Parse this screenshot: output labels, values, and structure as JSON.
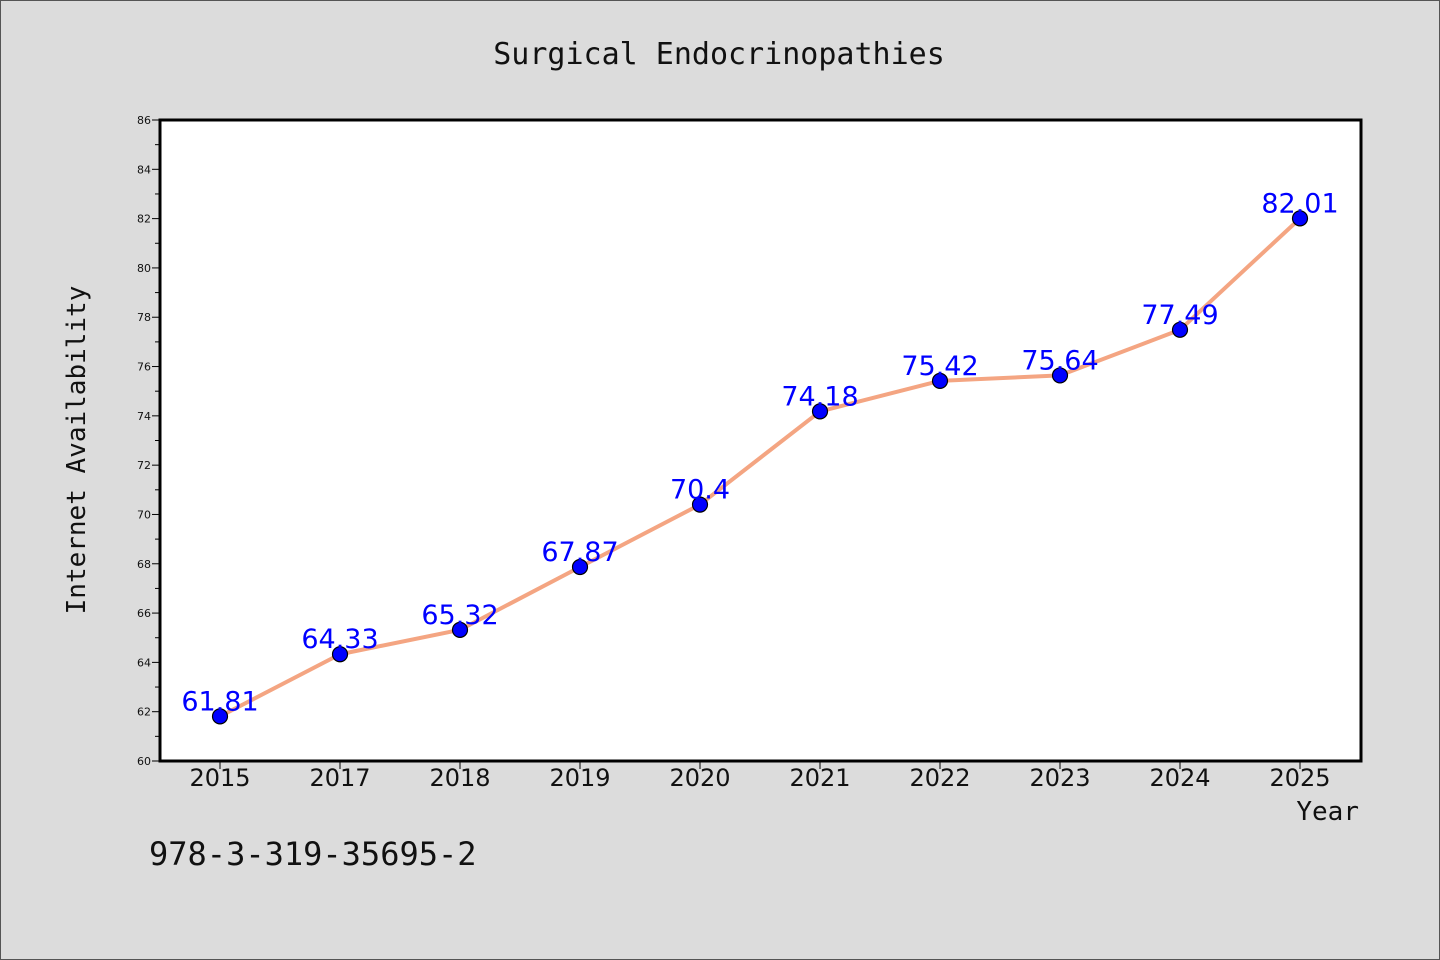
{
  "chart_data": {
    "type": "line",
    "title": "Surgical Endocrinopathies",
    "xlabel": "Year",
    "ylabel": "Internet Availability",
    "categories": [
      "2015",
      "2017",
      "2018",
      "2019",
      "2020",
      "2021",
      "2022",
      "2023",
      "2024",
      "2025"
    ],
    "values": [
      61.81,
      64.33,
      65.32,
      67.87,
      70.4,
      74.18,
      75.42,
      75.64,
      77.49,
      82.01
    ],
    "data_labels": [
      "61.81",
      "64.33",
      "65.32",
      "67.87",
      "70.4",
      "74.18",
      "75.42",
      "75.64",
      "77.49",
      "82.01"
    ],
    "ylim": [
      60,
      86
    ],
    "y_ticks": [
      "60",
      "62",
      "64",
      "66",
      "68",
      "70",
      "72",
      "74",
      "76",
      "78",
      "80",
      "82",
      "84",
      "86"
    ],
    "grid": false,
    "legend": "none",
    "line_color": "#f4a582",
    "marker_color": "#0000ff",
    "label_color": "#0000ff"
  },
  "annotation": "978-3-319-35695-2"
}
